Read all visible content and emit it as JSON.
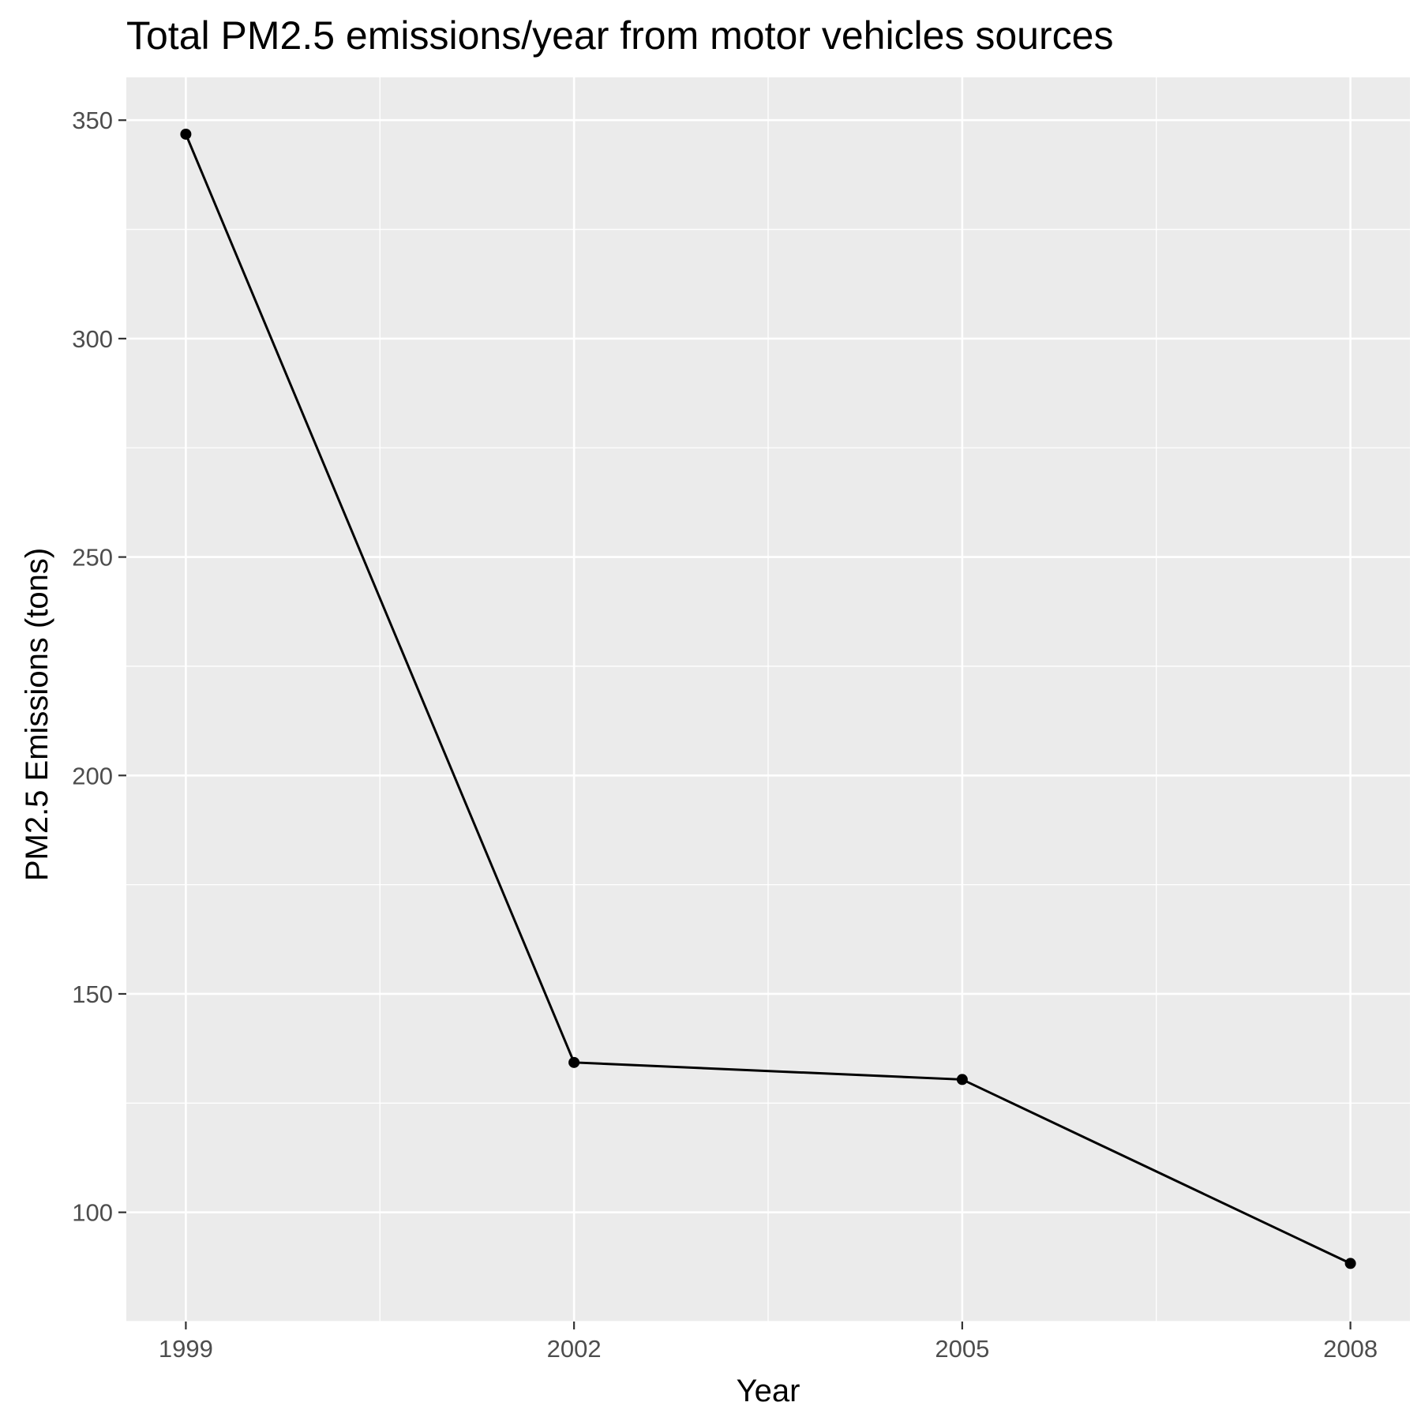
{
  "chart_data": {
    "type": "line",
    "title": "Total PM2.5 emissions/year from motor vehicles sources",
    "xlabel": "Year",
    "ylabel": "PM2.5 Emissions (tons)",
    "x": [
      1999,
      2002,
      2005,
      2008
    ],
    "values": [
      346.8,
      134.3,
      130.4,
      88.3
    ],
    "xlim": [
      1998.54,
      2008.46
    ],
    "ylim": [
      75.0,
      359.8
    ],
    "x_ticks": [
      1999,
      2002,
      2005,
      2008
    ],
    "y_ticks": [
      100,
      150,
      200,
      250,
      300,
      350
    ],
    "grid": true,
    "legend": "none",
    "colors": {
      "panel": "#ebebeb",
      "grid": "#ffffff",
      "series": "#000000"
    }
  }
}
